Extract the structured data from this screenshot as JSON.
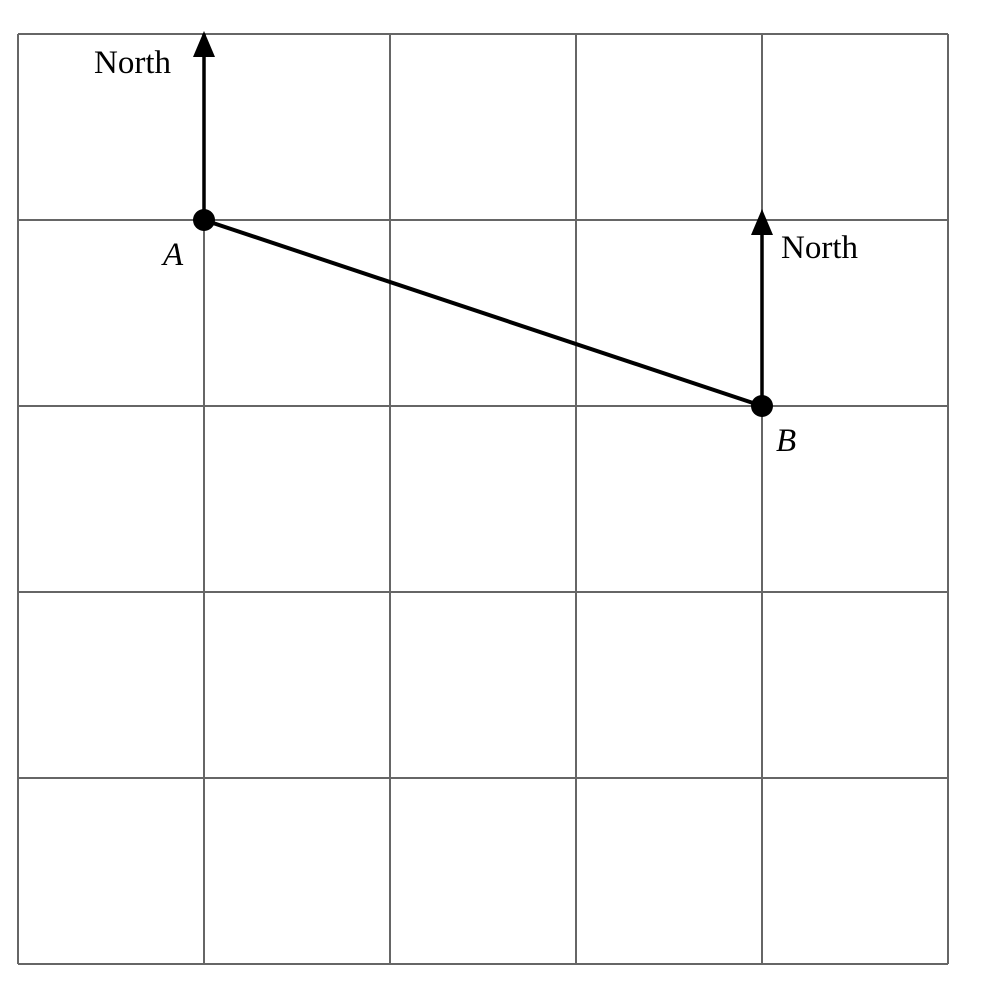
{
  "grid": {
    "columns": 5,
    "rows": 5,
    "line_color": "#666666"
  },
  "points": [
    {
      "label": "A",
      "col": 1,
      "row": 1
    },
    {
      "label": "B",
      "col": 4,
      "row": 2
    }
  ],
  "north_labels": {
    "a": "North",
    "b": "North"
  },
  "ink_color": "#000000"
}
